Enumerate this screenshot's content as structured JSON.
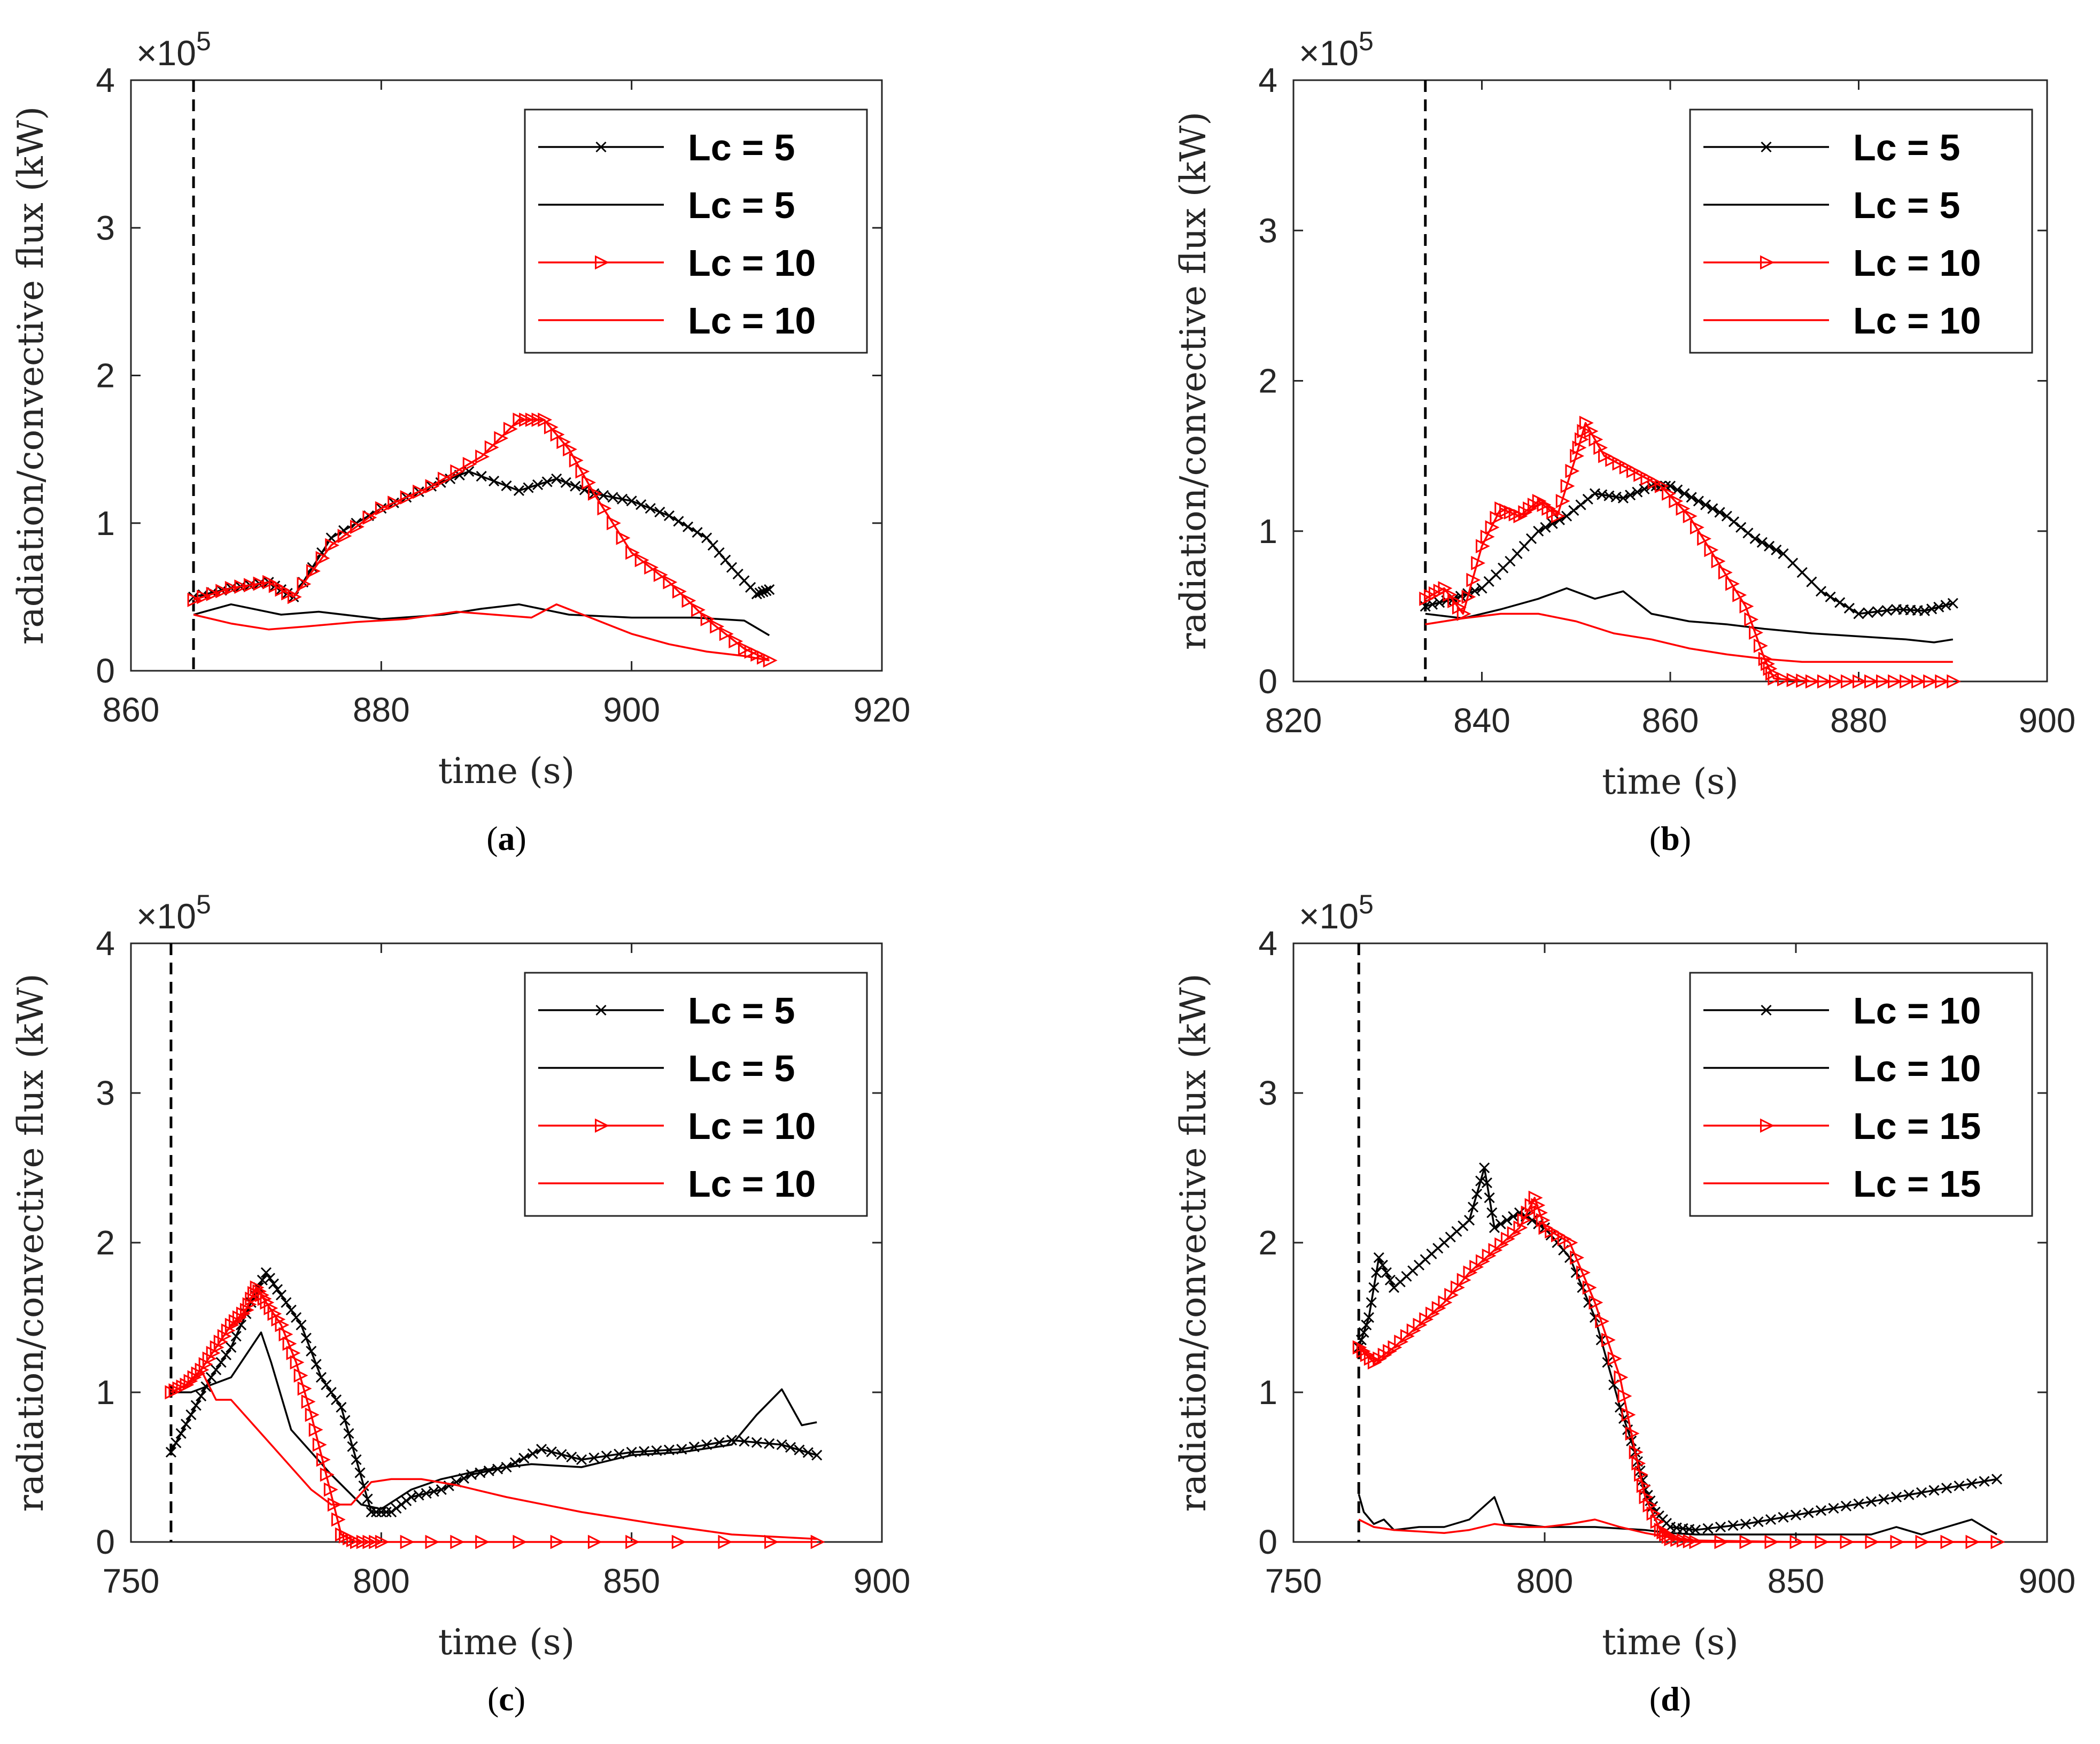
{
  "figure": {
    "axis_exponent": "×10",
    "exponent_power": "5",
    "colors": {
      "black": "#000000",
      "red": "#ff0000",
      "frame": "#262626"
    }
  },
  "chart_data": [
    {
      "id": "a",
      "panel_label": "(a)",
      "type": "line",
      "xlabel": "time (s)",
      "ylabel": "radiation/convective flux (kW)",
      "xlim": [
        860,
        920
      ],
      "xticks": [
        860,
        880,
        900,
        920
      ],
      "ylim": [
        0,
        4
      ],
      "yticks": [
        0,
        1,
        2,
        3,
        4
      ],
      "y_scale_note": "×10^5",
      "vline_x": 865,
      "legend_position": "top-right",
      "series": [
        {
          "name": "Lc = 5",
          "color": "#000000",
          "marker": "x",
          "x": [
            865,
            868,
            871,
            873,
            876,
            880,
            884,
            887,
            891,
            894,
            897,
            900,
            903,
            906,
            908,
            910,
            911
          ],
          "y": [
            0.5,
            0.56,
            0.6,
            0.5,
            0.9,
            1.1,
            1.25,
            1.35,
            1.22,
            1.3,
            1.2,
            1.15,
            1.05,
            0.9,
            0.7,
            0.52,
            0.55
          ]
        },
        {
          "name": "Lc = 5",
          "color": "#000000",
          "marker": "none",
          "x": [
            865,
            868,
            872,
            875,
            880,
            885,
            888,
            891,
            895,
            900,
            905,
            909,
            911
          ],
          "y": [
            0.38,
            0.45,
            0.38,
            0.4,
            0.35,
            0.38,
            0.42,
            0.45,
            0.38,
            0.36,
            0.36,
            0.34,
            0.24
          ]
        },
        {
          "name": "Lc = 10",
          "color": "#ff0000",
          "marker": "triangle-right",
          "x": [
            865,
            868,
            871,
            873,
            876,
            880,
            884,
            888,
            891,
            893,
            895,
            897,
            900,
            903,
            906,
            909,
            911
          ],
          "y": [
            0.48,
            0.56,
            0.6,
            0.5,
            0.85,
            1.1,
            1.25,
            1.45,
            1.7,
            1.7,
            1.5,
            1.2,
            0.8,
            0.6,
            0.35,
            0.15,
            0.07
          ]
        },
        {
          "name": "Lc = 10",
          "color": "#ff0000",
          "marker": "none",
          "x": [
            865,
            868,
            871,
            874,
            878,
            882,
            886,
            889,
            892,
            894,
            897,
            900,
            903,
            906,
            909,
            911
          ],
          "y": [
            0.38,
            0.32,
            0.28,
            0.3,
            0.33,
            0.35,
            0.4,
            0.38,
            0.36,
            0.45,
            0.35,
            0.25,
            0.18,
            0.13,
            0.1,
            0.07
          ]
        }
      ]
    },
    {
      "id": "b",
      "panel_label": "(b)",
      "type": "line",
      "xlabel": "time (s)",
      "ylabel": "radiation/convective flux (kW)",
      "xlim": [
        820,
        900
      ],
      "xticks": [
        820,
        840,
        860,
        880,
        900
      ],
      "ylim": [
        0,
        4
      ],
      "yticks": [
        0,
        1,
        2,
        3,
        4
      ],
      "y_scale_note": "×10^5",
      "vline_x": 834,
      "legend_position": "top-right",
      "series": [
        {
          "name": "Lc = 5",
          "color": "#000000",
          "marker": "x",
          "x": [
            834,
            837,
            840,
            843,
            846,
            849,
            852,
            855,
            858,
            860,
            863,
            866,
            869,
            872,
            876,
            880,
            884,
            887,
            890
          ],
          "y": [
            0.5,
            0.55,
            0.62,
            0.8,
            1.0,
            1.1,
            1.25,
            1.22,
            1.3,
            1.3,
            1.2,
            1.1,
            0.95,
            0.85,
            0.6,
            0.45,
            0.48,
            0.47,
            0.52
          ]
        },
        {
          "name": "Lc = 5",
          "color": "#000000",
          "marker": "none",
          "x": [
            834,
            838,
            842,
            846,
            849,
            852,
            855,
            858,
            862,
            866,
            870,
            875,
            880,
            885,
            888,
            890
          ],
          "y": [
            0.45,
            0.42,
            0.48,
            0.55,
            0.62,
            0.55,
            0.6,
            0.45,
            0.4,
            0.38,
            0.35,
            0.32,
            0.3,
            0.28,
            0.26,
            0.28
          ]
        },
        {
          "name": "Lc = 10",
          "color": "#ff0000",
          "marker": "triangle-right",
          "x": [
            834,
            836,
            838,
            840,
            842,
            844,
            846,
            848,
            850,
            851,
            853,
            856,
            859,
            862,
            865,
            868,
            870,
            871,
            875,
            880,
            885,
            890
          ],
          "y": [
            0.55,
            0.62,
            0.45,
            0.9,
            1.15,
            1.1,
            1.2,
            1.1,
            1.5,
            1.72,
            1.5,
            1.4,
            1.3,
            1.1,
            0.8,
            0.5,
            0.15,
            0.02,
            0.0,
            0.0,
            0.0,
            0.0
          ]
        },
        {
          "name": "Lc = 10",
          "color": "#ff0000",
          "marker": "none",
          "x": [
            834,
            838,
            842,
            846,
            850,
            854,
            858,
            862,
            866,
            870,
            874,
            878,
            882,
            886,
            890
          ],
          "y": [
            0.38,
            0.42,
            0.45,
            0.45,
            0.4,
            0.32,
            0.28,
            0.22,
            0.18,
            0.15,
            0.13,
            0.13,
            0.13,
            0.13,
            0.13
          ]
        }
      ]
    },
    {
      "id": "c",
      "panel_label": "(c)",
      "type": "line",
      "xlabel": "time (s)",
      "ylabel": "radiation/convective flux (kW)",
      "xlim": [
        750,
        900
      ],
      "xticks": [
        750,
        800,
        850,
        900
      ],
      "ylim": [
        0,
        4
      ],
      "yticks": [
        0,
        1,
        2,
        3,
        4
      ],
      "y_scale_note": "×10^5",
      "vline_x": 758,
      "legend_position": "top-right",
      "series": [
        {
          "name": "Lc = 5",
          "color": "#000000",
          "marker": "x",
          "x": [
            758,
            762,
            766,
            770,
            774,
            777,
            780,
            784,
            788,
            792,
            795,
            798,
            802,
            806,
            812,
            818,
            825,
            832,
            840,
            850,
            860,
            870,
            880,
            887
          ],
          "y": [
            0.6,
            0.85,
            1.1,
            1.3,
            1.6,
            1.8,
            1.65,
            1.45,
            1.1,
            0.9,
            0.55,
            0.2,
            0.2,
            0.3,
            0.35,
            0.45,
            0.5,
            0.62,
            0.55,
            0.6,
            0.62,
            0.68,
            0.65,
            0.58
          ]
        },
        {
          "name": "Lc = 5",
          "color": "#000000",
          "marker": "none",
          "x": [
            758,
            762,
            766,
            770,
            774,
            776,
            778,
            782,
            786,
            790,
            796,
            800,
            806,
            812,
            820,
            830,
            840,
            850,
            860,
            870,
            875,
            880,
            884,
            887
          ],
          "y": [
            1.0,
            1.0,
            1.05,
            1.1,
            1.3,
            1.4,
            1.2,
            0.75,
            0.6,
            0.45,
            0.25,
            0.22,
            0.35,
            0.42,
            0.48,
            0.52,
            0.5,
            0.58,
            0.6,
            0.65,
            0.85,
            1.02,
            0.78,
            0.8
          ]
        },
        {
          "name": "Lc = 10",
          "color": "#ff0000",
          "marker": "triangle-right",
          "x": [
            758,
            761,
            764,
            767,
            770,
            773,
            775,
            777,
            780,
            783,
            786,
            789,
            792,
            795,
            800,
            820,
            850,
            887
          ],
          "y": [
            1.0,
            1.05,
            1.15,
            1.3,
            1.45,
            1.55,
            1.7,
            1.6,
            1.45,
            1.2,
            0.85,
            0.45,
            0.05,
            0.0,
            0.0,
            0.0,
            0.0,
            0.0
          ]
        },
        {
          "name": "Lc = 10",
          "color": "#ff0000",
          "marker": "none",
          "x": [
            758,
            761,
            764,
            767,
            770,
            774,
            778,
            782,
            786,
            790,
            794,
            798,
            802,
            808,
            815,
            825,
            840,
            855,
            870,
            887
          ],
          "y": [
            1.0,
            1.05,
            1.15,
            0.95,
            0.95,
            0.8,
            0.65,
            0.5,
            0.35,
            0.25,
            0.25,
            0.4,
            0.42,
            0.42,
            0.38,
            0.3,
            0.2,
            0.12,
            0.05,
            0.02
          ]
        }
      ]
    },
    {
      "id": "d",
      "panel_label": "(d)",
      "type": "line",
      "xlabel": "time (s)",
      "ylabel": "radiation/convective flux (kW)",
      "xlim": [
        750,
        900
      ],
      "xticks": [
        750,
        800,
        850,
        900
      ],
      "ylim": [
        0,
        4
      ],
      "yticks": [
        0,
        1,
        2,
        3,
        4
      ],
      "y_scale_note": "×10^5",
      "vline_x": 763,
      "legend_position": "top-right",
      "series": [
        {
          "name": "Lc = 10",
          "color": "#000000",
          "marker": "x",
          "x": [
            763,
            765,
            767,
            770,
            775,
            780,
            785,
            788,
            790,
            795,
            800,
            805,
            810,
            815,
            818,
            820,
            822,
            825,
            830,
            840,
            850,
            860,
            870,
            880,
            890
          ],
          "y": [
            1.3,
            1.5,
            1.9,
            1.7,
            1.85,
            2.0,
            2.15,
            2.5,
            2.1,
            2.2,
            2.1,
            1.9,
            1.5,
            0.9,
            0.6,
            0.35,
            0.2,
            0.1,
            0.08,
            0.12,
            0.18,
            0.24,
            0.3,
            0.36,
            0.42
          ]
        },
        {
          "name": "Lc = 10",
          "color": "#000000",
          "marker": "none",
          "x": [
            763,
            764,
            766,
            768,
            770,
            775,
            780,
            785,
            790,
            792,
            795,
            800,
            810,
            820,
            825,
            830,
            850,
            865,
            870,
            875,
            880,
            885,
            890
          ],
          "y": [
            0.32,
            0.2,
            0.12,
            0.15,
            0.08,
            0.1,
            0.1,
            0.15,
            0.3,
            0.12,
            0.12,
            0.1,
            0.1,
            0.08,
            0.06,
            0.05,
            0.05,
            0.05,
            0.1,
            0.05,
            0.1,
            0.15,
            0.05
          ]
        },
        {
          "name": "Lc = 15",
          "color": "#ff0000",
          "marker": "triangle-right",
          "x": [
            763,
            766,
            770,
            775,
            780,
            785,
            790,
            795,
            798,
            800,
            805,
            810,
            815,
            818,
            820,
            823,
            825,
            830,
            850,
            870,
            890
          ],
          "y": [
            1.3,
            1.2,
            1.3,
            1.45,
            1.6,
            1.8,
            1.95,
            2.1,
            2.3,
            2.1,
            2.0,
            1.6,
            1.1,
            0.6,
            0.3,
            0.08,
            0.02,
            0.0,
            0.0,
            0.0,
            0.0
          ]
        },
        {
          "name": "Lc = 15",
          "color": "#ff0000",
          "marker": "none",
          "x": [
            763,
            766,
            770,
            775,
            780,
            785,
            790,
            795,
            800,
            805,
            810,
            815,
            820,
            825,
            830,
            850,
            870,
            890
          ],
          "y": [
            0.15,
            0.1,
            0.08,
            0.07,
            0.06,
            0.08,
            0.12,
            0.1,
            0.1,
            0.12,
            0.15,
            0.1,
            0.06,
            0.03,
            0.01,
            0.0,
            0.0,
            0.0
          ]
        }
      ]
    }
  ]
}
